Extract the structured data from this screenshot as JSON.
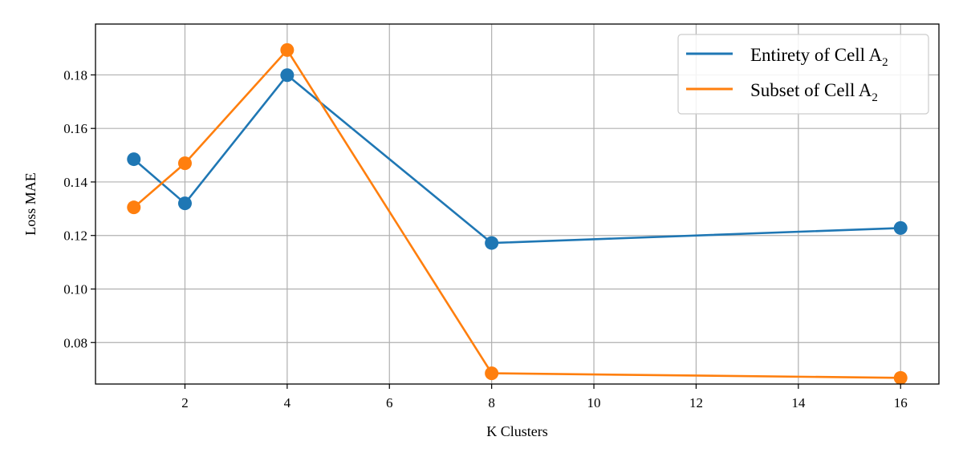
{
  "chart_data": {
    "type": "line",
    "title": "",
    "xlabel": "K Clusters",
    "ylabel": "Loss MAE",
    "xlim": [
      0.25,
      16.75
    ],
    "ylim": [
      0.0645,
      0.199
    ],
    "xticks": [
      2,
      4,
      6,
      8,
      10,
      12,
      14,
      16
    ],
    "yticks": [
      0.08,
      0.1,
      0.12,
      0.14,
      0.16,
      0.18
    ],
    "x_tick_labels": [
      "2",
      "4",
      "6",
      "8",
      "10",
      "12",
      "14",
      "16"
    ],
    "y_tick_labels": [
      "0.08",
      "0.10",
      "0.12",
      "0.14",
      "0.16",
      "0.18"
    ],
    "grid": true,
    "legend_position": "top-right",
    "x": [
      1,
      2,
      4,
      8,
      16
    ],
    "series": [
      {
        "name": "Entirety of Cell A",
        "name_subscript": "2",
        "color": "#1f77b4",
        "values": [
          0.1485,
          0.132,
          0.1799,
          0.1172,
          0.1228
        ]
      },
      {
        "name": "Subset of Cell A",
        "name_subscript": "2",
        "color": "#ff7f0e",
        "values": [
          0.1305,
          0.147,
          0.1893,
          0.0685,
          0.0668
        ]
      }
    ]
  }
}
